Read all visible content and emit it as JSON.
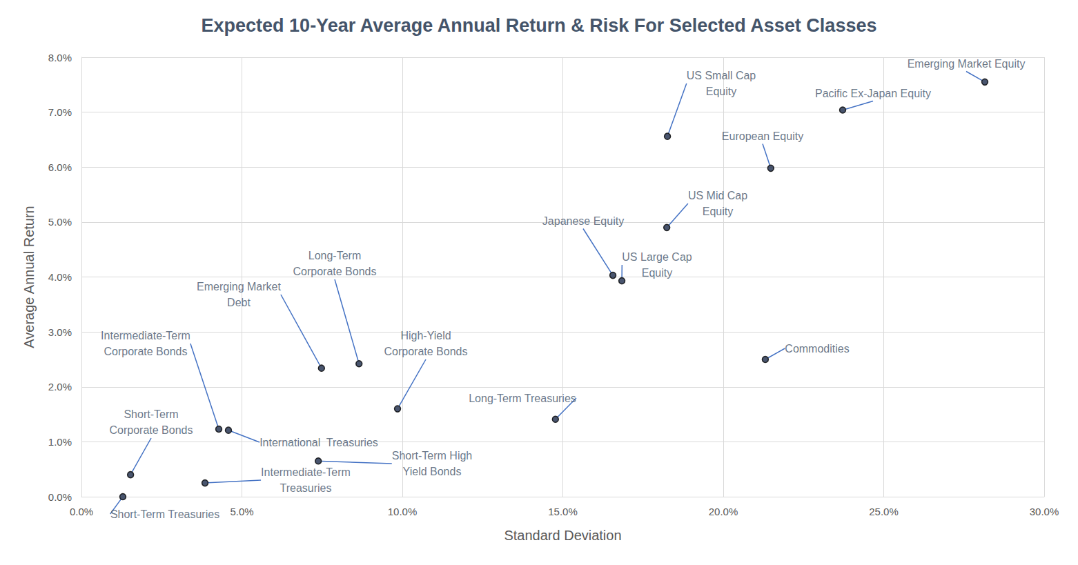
{
  "chart_data": {
    "type": "scatter",
    "title": "Expected 10-Year Average Annual Return & Risk For Selected Asset Classes",
    "x_label": "Standard Deviation",
    "y_label": "Average Annual Return",
    "labels": [
      "Emerging Market Equity",
      "Pacific Ex-Japan Equity",
      "US Small Cap\nEquity",
      "European Equity",
      "US Mid Cap\nEquity",
      "Japanese Equity",
      "US Large Cap\nEquity",
      "Commodities",
      "Long-Term\nCorporate Bonds",
      "Emerging Market\nDebt",
      "High-Yield\nCorporate Bonds",
      "Long-Term Treasuries",
      "Intermediate-Term\nCorporate Bonds",
      "International  Treasuries",
      "Short-Term High\nYield Bonds",
      "Short-Term\nCorporate Bonds",
      "Intermediate-Term\nTreasuries",
      "Short-Term Treasuries"
    ],
    "x": [
      28.15,
      23.72,
      18.26,
      21.48,
      18.24,
      16.56,
      16.84,
      21.31,
      8.65,
      7.48,
      9.85,
      14.77,
      4.28,
      4.58,
      7.38,
      1.53,
      3.85,
      1.29
    ],
    "y": [
      7.55,
      7.04,
      6.56,
      5.98,
      4.9,
      4.03,
      3.93,
      2.5,
      2.42,
      2.34,
      1.6,
      1.41,
      1.23,
      1.21,
      0.65,
      0.4,
      0.25,
      0.0
    ],
    "color": "#1c2a4a",
    "marker": "circle",
    "xlim": [
      0,
      30
    ],
    "xticks": [
      {
        "value": 0,
        "label": "0.0%"
      },
      {
        "value": 5,
        "label": "5.0%"
      },
      {
        "value": 10,
        "label": "10.0%"
      },
      {
        "value": 15,
        "label": "15.0%"
      },
      {
        "value": 20,
        "label": "20.0%"
      },
      {
        "value": 25,
        "label": "25.0%"
      },
      {
        "value": 30,
        "label": "30.0%"
      }
    ],
    "ylim": [
      0,
      8
    ],
    "yticks": [
      {
        "value": 0,
        "label": "0.0%"
      },
      {
        "value": 1,
        "label": "1.0%"
      },
      {
        "value": 2,
        "label": "2.0%"
      },
      {
        "value": 3,
        "label": "3.0%"
      },
      {
        "value": 4,
        "label": "4.0%"
      },
      {
        "value": 5,
        "label": "5.0%"
      },
      {
        "value": 6,
        "label": "6.0%"
      },
      {
        "value": 7,
        "label": "7.0%"
      },
      {
        "value": 8,
        "label": "8.0%"
      }
    ],
    "grid": true
  }
}
